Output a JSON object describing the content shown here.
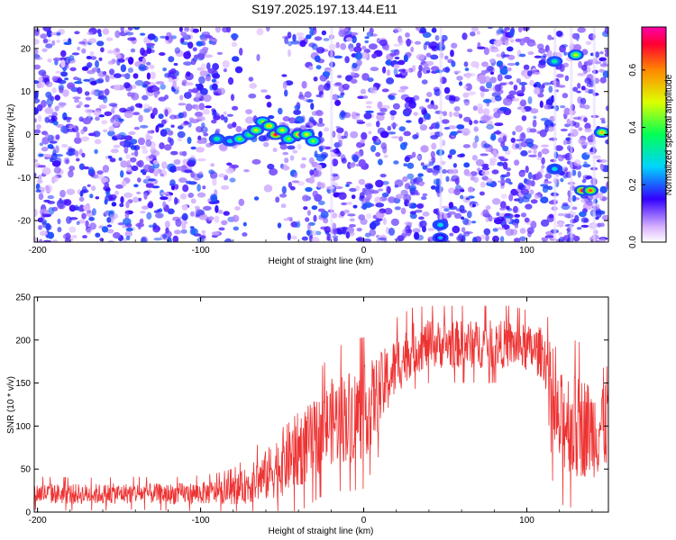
{
  "figure": {
    "title": "S197.2025.197.13.44.E11"
  },
  "chart_data": [
    {
      "type": "heatmap",
      "xlabel": "Height of straight line (km)",
      "ylabel": "Frequency (Hz)",
      "xlim": [
        -202,
        150
      ],
      "ylim": [
        -25,
        25
      ],
      "x_ticks": [
        -200,
        -100,
        0,
        100
      ],
      "x_tick_labels": [
        "-200",
        "-100",
        "0",
        "100"
      ],
      "y_ticks": [
        -20,
        -10,
        0,
        10,
        20
      ],
      "y_tick_labels": [
        "-20",
        "-10",
        "0",
        "10",
        "20"
      ],
      "colorbar": {
        "label": "Normalized spectral amplitude",
        "range": [
          0,
          0.75
        ],
        "ticks": [
          0,
          0.2,
          0.4,
          0.6
        ],
        "tick_labels": [
          "0.0",
          "0.2",
          "0.4",
          "0.6"
        ]
      },
      "noise_gap": [
        -78,
        -50
      ],
      "features": [
        {
          "x": -90,
          "y": -1,
          "value": 0.35
        },
        {
          "x": -82,
          "y": -1.5,
          "value": 0.3
        },
        {
          "x": -76,
          "y": -1,
          "value": 0.45
        },
        {
          "x": -70,
          "y": 0,
          "value": 0.4
        },
        {
          "x": -66,
          "y": 1,
          "value": 0.5
        },
        {
          "x": -62,
          "y": 3,
          "value": 0.45
        },
        {
          "x": -58,
          "y": 2,
          "value": 0.55
        },
        {
          "x": -54,
          "y": 0,
          "value": 0.7
        },
        {
          "x": -50,
          "y": 1,
          "value": 0.5
        },
        {
          "x": -46,
          "y": -1,
          "value": 0.45
        },
        {
          "x": -40,
          "y": 0,
          "value": 0.6
        },
        {
          "x": -35,
          "y": 0,
          "value": 0.5
        },
        {
          "x": -31,
          "y": -1.5,
          "value": 0.45
        },
        {
          "x": 47,
          "y": -21,
          "value": 0.3
        },
        {
          "x": 47,
          "y": -24,
          "value": 0.25
        },
        {
          "x": 117,
          "y": 17,
          "value": 0.35
        },
        {
          "x": 117,
          "y": -8,
          "value": 0.3
        },
        {
          "x": 130,
          "y": 18.5,
          "value": 0.5
        },
        {
          "x": 134,
          "y": -13,
          "value": 0.7
        },
        {
          "x": 139,
          "y": -13,
          "value": 0.65
        },
        {
          "x": 146,
          "y": 0.5,
          "value": 0.55
        }
      ]
    },
    {
      "type": "line",
      "xlabel": "Height of straight line (km)",
      "ylabel": "SNR (10 * v/v)",
      "xlim": [
        -202,
        150
      ],
      "ylim": [
        0,
        250
      ],
      "x_ticks": [
        -200,
        -100,
        0,
        100
      ],
      "x_tick_labels": [
        "-200",
        "-100",
        "0",
        "100"
      ],
      "y_ticks": [
        0,
        50,
        100,
        150,
        200,
        250
      ],
      "y_tick_labels": [
        "0",
        "50",
        "100",
        "150",
        "200",
        "250"
      ],
      "color": "#ee3333",
      "series": [
        {
          "x": [
            -202,
            -180,
            -160,
            -140,
            -120,
            -100,
            -90,
            -80,
            -70,
            -60,
            -50,
            -40,
            -30,
            -20,
            -10,
            0,
            10,
            20,
            30,
            40,
            50,
            60,
            70,
            80,
            90,
            100,
            110,
            114,
            116,
            120,
            125,
            130,
            135,
            140,
            145,
            150
          ],
          "y": [
            22,
            21,
            21,
            22,
            21,
            22,
            23,
            25,
            32,
            42,
            58,
            72,
            85,
            105,
            112,
            115,
            140,
            170,
            190,
            195,
            195,
            195,
            195,
            195,
            195,
            190,
            185,
            160,
            110,
            100,
            110,
            95,
            100,
            95,
            100,
            115
          ],
          "spread": [
            12,
            12,
            12,
            12,
            12,
            13,
            14,
            16,
            22,
            30,
            40,
            45,
            45,
            50,
            55,
            55,
            45,
            35,
            30,
            28,
            28,
            28,
            28,
            28,
            28,
            28,
            30,
            40,
            50,
            60,
            60,
            65,
            60,
            55,
            60,
            65
          ]
        }
      ]
    }
  ]
}
